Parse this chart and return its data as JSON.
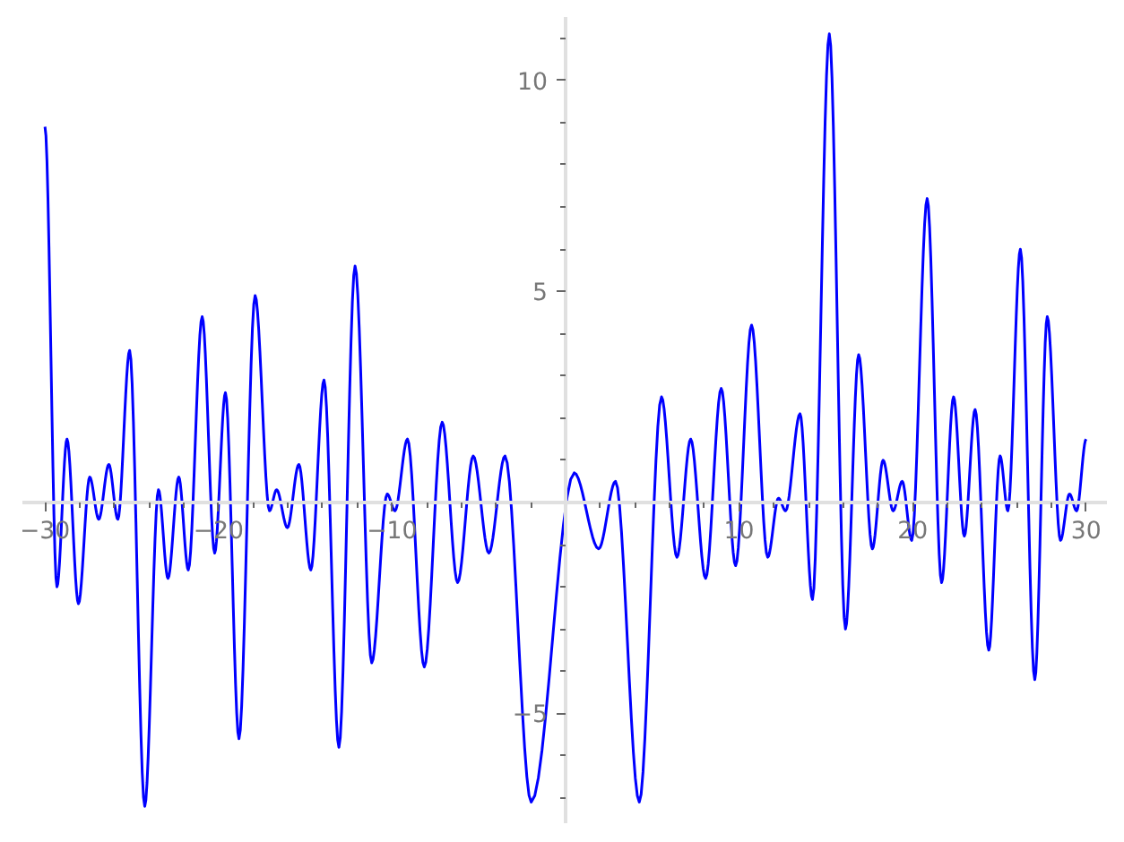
{
  "chart_data": {
    "type": "line",
    "grid": false,
    "marker": "none",
    "line_style": "solid",
    "xlim": [
      -31.3,
      31.2
    ],
    "ylim": [
      -7.6,
      11.5
    ],
    "xticks": [
      {
        "value": -30,
        "label": "−30"
      },
      {
        "value": -20,
        "label": "−20"
      },
      {
        "value": -10,
        "label": "−10"
      },
      10,
      20,
      30,
      {
        "value": -28,
        "label": null
      },
      {
        "value": -26,
        "label": null
      },
      {
        "value": -24,
        "label": null
      },
      {
        "value": -22,
        "label": null
      },
      {
        "value": -18,
        "label": null
      },
      {
        "value": -16,
        "label": null
      },
      {
        "value": -14,
        "label": null
      },
      {
        "value": -12,
        "label": null
      },
      {
        "value": -8,
        "label": null
      },
      {
        "value": -6,
        "label": null
      },
      {
        "value": -4,
        "label": null
      },
      {
        "value": -2,
        "label": null
      },
      {
        "value": 2,
        "label": null
      },
      {
        "value": 4,
        "label": null
      },
      {
        "value": 6,
        "label": null
      },
      {
        "value": 8,
        "label": null
      },
      {
        "value": 12,
        "label": null
      },
      {
        "value": 14,
        "label": null
      },
      {
        "value": 16,
        "label": null
      },
      {
        "value": 18,
        "label": null
      },
      {
        "value": 22,
        "label": null
      },
      {
        "value": 24,
        "label": null
      },
      {
        "value": 26,
        "label": null
      },
      {
        "value": 28,
        "label": null
      }
    ],
    "yticks": [
      {
        "value": -5,
        "label": "−5"
      },
      5,
      10,
      {
        "value": -7,
        "label": null
      },
      {
        "value": -6,
        "label": null
      },
      {
        "value": -4,
        "label": null
      },
      {
        "value": -3,
        "label": null
      },
      {
        "value": -2,
        "label": null
      },
      {
        "value": -1,
        "label": null
      },
      {
        "value": 1,
        "label": null
      },
      {
        "value": 2,
        "label": null
      },
      {
        "value": 3,
        "label": null
      },
      {
        "value": 4,
        "label": null
      },
      {
        "value": 6,
        "label": null
      },
      {
        "value": 7,
        "label": null
      },
      {
        "value": 8,
        "label": null
      },
      {
        "value": 9,
        "label": null
      },
      {
        "value": 11,
        "label": null
      }
    ],
    "series": [
      {
        "color": "#0000ff",
        "x": [
          -30,
          -29.31,
          -28.73,
          -28.07,
          -27.42,
          -26.9,
          -26.32,
          -25.8,
          -25.12,
          -24.25,
          -23.46,
          -22.91,
          -22.29,
          -21.74,
          -20.94,
          -20.22,
          -19.6,
          -18.82,
          -17.89,
          -17.06,
          -16.65,
          -16.03,
          -15.37,
          -14.68,
          -13.92,
          -13.06,
          -12.13,
          -11.17,
          -10.28,
          -9.83,
          -9.11,
          -8.14,
          -7.11,
          -6.22,
          -5.32,
          -4.42,
          -3.49,
          -1.98,
          0.5,
          1.91,
          2.88,
          4.25,
          5.53,
          6.42,
          7.21,
          8.07,
          8.97,
          9.8,
          10.72,
          11.65,
          12.27,
          12.68,
          13.51,
          14.23,
          15.2,
          16.13,
          16.89,
          17.68,
          18.3,
          18.88,
          19.4,
          19.95,
          20.84,
          21.67,
          22.36,
          22.98,
          23.6,
          24.39,
          25.04,
          25.49,
          26.21,
          27.04,
          27.76,
          28.52,
          29.04,
          29.45,
          30
        ],
        "values": [
          8.9,
          -2.0,
          1.5,
          -2.4,
          0.6,
          -0.4,
          0.9,
          -0.4,
          3.6,
          -7.2,
          0.3,
          -1.8,
          0.6,
          -1.6,
          4.4,
          -1.2,
          2.6,
          -5.6,
          4.9,
          -0.2,
          0.3,
          -0.6,
          0.9,
          -1.6,
          2.9,
          -5.8,
          5.6,
          -3.8,
          0.2,
          -0.2,
          1.5,
          -3.9,
          1.9,
          -1.9,
          1.1,
          -1.2,
          1.1,
          -7.1,
          0.7,
          -1.1,
          0.5,
          -7.1,
          2.5,
          -1.3,
          1.5,
          -1.8,
          2.7,
          -1.5,
          4.2,
          -1.3,
          0.1,
          -0.2,
          2.1,
          -2.3,
          11.1,
          -3.0,
          3.5,
          -1.1,
          1.0,
          -0.2,
          0.5,
          -0.9,
          7.2,
          -1.9,
          2.5,
          -0.8,
          2.2,
          -3.5,
          1.1,
          -0.2,
          6.0,
          -4.2,
          4.4,
          -0.9,
          0.2,
          -0.2,
          1.5
        ]
      }
    ]
  }
}
